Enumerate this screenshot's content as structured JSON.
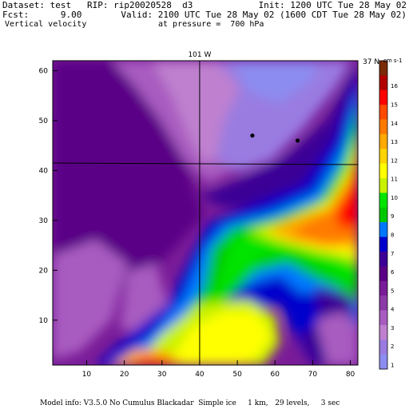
{
  "header": {
    "dataset_line": "Dataset: test   RIP: rip20020528  d3",
    "init_line": "Init: 1200 UTC Tue 28 May 02",
    "fcst_line": "Fcst:      9.00",
    "valid_line": "Valid: 2100 UTC Tue 28 May 02 (1600 CDT Tue 28 May 02)",
    "field_line": "Vertical velocity",
    "pressure_line": "at pressure =  700 hPa"
  },
  "footer": {
    "model_info": "Model info: V3.5.0 No Cumulus Blackadar  Simple ice     1 km,   29 levels,     3 sec"
  },
  "chart_data": {
    "type": "heatmap",
    "title": "Vertical velocity",
    "xlim": [
      1,
      82
    ],
    "ylim": [
      1,
      62
    ],
    "xticks": [
      10,
      20,
      30,
      40,
      50,
      60,
      70,
      80
    ],
    "yticks": [
      10,
      20,
      30,
      40,
      50,
      60
    ],
    "reference_lines": [
      {
        "label": "101 W",
        "orientation": "vertical",
        "x": 40
      },
      {
        "label": "37 N",
        "orientation": "horizontal",
        "y": 41.5
      }
    ],
    "points": [
      {
        "x": 54,
        "y": 47
      },
      {
        "x": 66,
        "y": 46
      }
    ],
    "colorbar": {
      "units": "cm s-1",
      "labels": [
        "16",
        "15",
        "14",
        "13",
        "12",
        "11",
        "10",
        "9",
        "8",
        "7",
        "6",
        "5",
        "4",
        "3",
        "2",
        "1"
      ],
      "colors": [
        "#7a2a04",
        "#b20000",
        "#ff0000",
        "#ff4a00",
        "#ff7a00",
        "#ffaa00",
        "#ffd400",
        "#ffff00",
        "#c8f200",
        "#00e400",
        "#00c800",
        "#0078ff",
        "#0000cc",
        "#3b0096",
        "#5a0086",
        "#7a1c98",
        "#8c3aa8",
        "#a85cc0",
        "#bf80cf",
        "#9a7ce0",
        "#8c8cf0"
      ]
    },
    "regions": [
      {
        "name": "northwest-low",
        "color": "#5a0086"
      },
      {
        "name": "north-light",
        "color": "#bf80cf"
      },
      {
        "name": "northeast-blue",
        "color": "#8c8cf0"
      },
      {
        "name": "east-max",
        "color": "#ff0000"
      },
      {
        "name": "south-yellow",
        "color": "#ffff00"
      }
    ]
  }
}
